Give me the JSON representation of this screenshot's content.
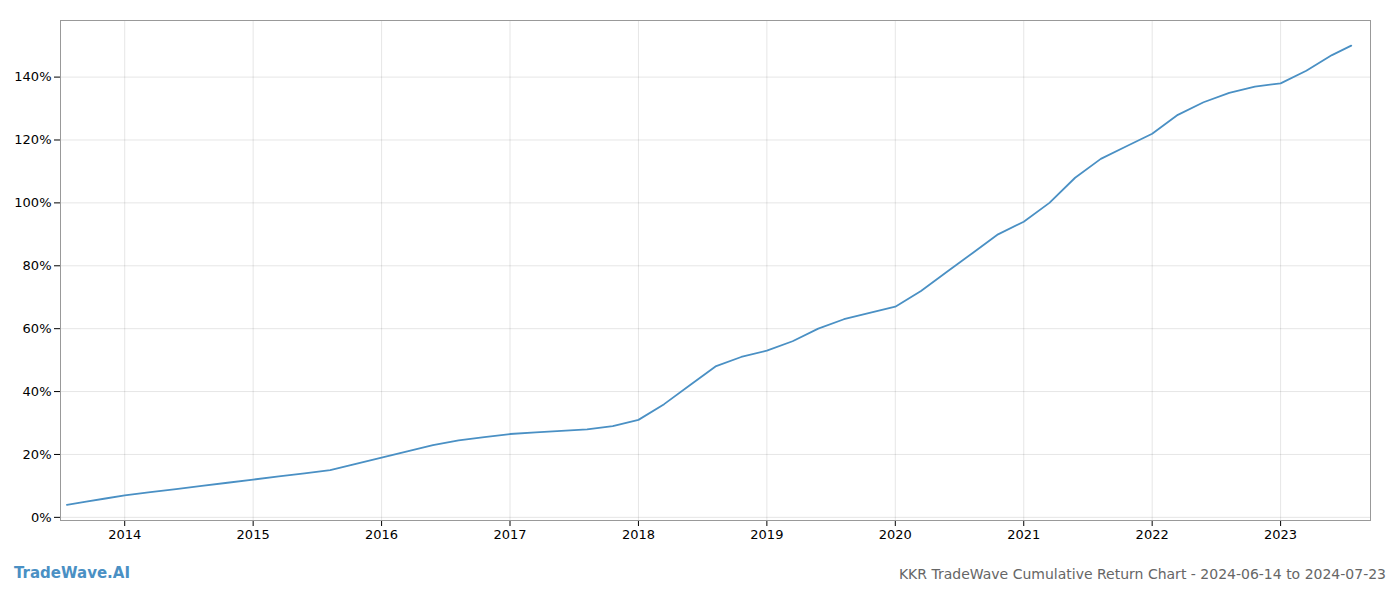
{
  "chart_data": {
    "type": "line",
    "title": "KKR TradeWave Cumulative Return Chart - 2024-06-14 to 2024-07-23",
    "annotations": [
      "TradeWave.AI"
    ],
    "color": "#4a90c4",
    "x": [
      2013.55,
      2013.7,
      2013.85,
      2014.0,
      2014.2,
      2014.4,
      2014.6,
      2014.8,
      2015.0,
      2015.2,
      2015.4,
      2015.6,
      2015.8,
      2016.0,
      2016.2,
      2016.4,
      2016.6,
      2016.8,
      2017.0,
      2017.2,
      2017.4,
      2017.6,
      2017.8,
      2018.0,
      2018.2,
      2018.4,
      2018.6,
      2018.8,
      2019.0,
      2019.2,
      2019.4,
      2019.6,
      2019.8,
      2020.0,
      2020.2,
      2020.4,
      2020.6,
      2020.8,
      2021.0,
      2021.2,
      2021.4,
      2021.6,
      2021.8,
      2022.0,
      2022.2,
      2022.4,
      2022.6,
      2022.8,
      2023.0,
      2023.2,
      2023.4,
      2023.55
    ],
    "values": [
      0.04,
      0.05,
      0.06,
      0.07,
      0.08,
      0.09,
      0.1,
      0.11,
      0.12,
      0.13,
      0.14,
      0.15,
      0.17,
      0.19,
      0.21,
      0.23,
      0.245,
      0.255,
      0.265,
      0.27,
      0.275,
      0.28,
      0.29,
      0.31,
      0.36,
      0.42,
      0.48,
      0.51,
      0.53,
      0.56,
      0.6,
      0.63,
      0.65,
      0.67,
      0.72,
      0.78,
      0.84,
      0.9,
      0.94,
      1.0,
      1.08,
      1.14,
      1.18,
      1.22,
      1.28,
      1.32,
      1.35,
      1.37,
      1.38,
      1.42,
      1.47,
      1.5
    ],
    "xlim": [
      2013.5,
      2023.7
    ],
    "ylim": [
      -0.01,
      1.58
    ],
    "xticks": [
      2014,
      2015,
      2016,
      2017,
      2018,
      2019,
      2020,
      2021,
      2022,
      2023
    ],
    "yticks": [
      {
        "value": 0.0,
        "label": "0%"
      },
      {
        "value": 0.2,
        "label": "20%"
      },
      {
        "value": 0.4,
        "label": "40%"
      },
      {
        "value": 0.6,
        "label": "60%"
      },
      {
        "value": 0.8,
        "label": "80%"
      },
      {
        "value": 1.0,
        "label": "100%"
      },
      {
        "value": 1.2,
        "label": "120%"
      },
      {
        "value": 1.4,
        "label": "140%"
      }
    ],
    "grid": true
  }
}
